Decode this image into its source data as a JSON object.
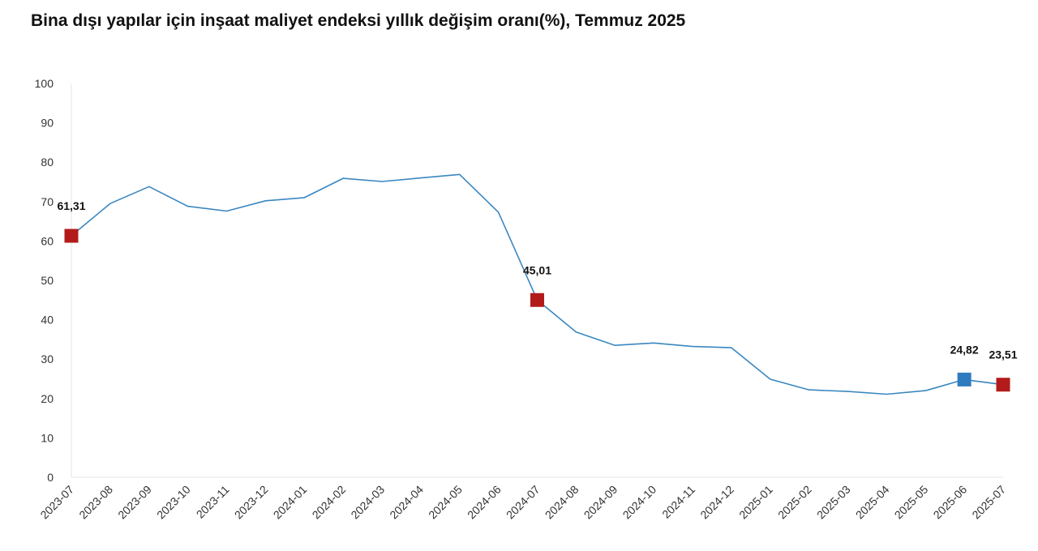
{
  "chart_data": {
    "type": "line",
    "title": "Bina dışı yapılar için inşaat maliyet endeksi yıllık değişim oranı(%), Temmuz 2025",
    "xlabel": "",
    "ylabel": "",
    "ylim": [
      0,
      100
    ],
    "yticks": [
      0,
      10,
      20,
      30,
      40,
      50,
      60,
      70,
      80,
      90,
      100
    ],
    "grid": false,
    "legend": "none",
    "categories": [
      "2023-07",
      "2023-08",
      "2023-09",
      "2023-10",
      "2023-11",
      "2023-12",
      "2024-01",
      "2024-02",
      "2024-03",
      "2024-04",
      "2024-05",
      "2024-06",
      "2024-07",
      "2024-08",
      "2024-09",
      "2024-10",
      "2024-11",
      "2024-12",
      "2025-01",
      "2025-02",
      "2025-03",
      "2025-04",
      "2025-05",
      "2025-06",
      "2025-07"
    ],
    "series": [
      {
        "values": [
          61.31,
          69.5,
          73.8,
          68.8,
          67.6,
          70.2,
          71.0,
          75.9,
          75.1,
          76.0,
          76.9,
          67.3,
          45.01,
          36.9,
          33.5,
          34.1,
          33.2,
          32.9,
          24.9,
          22.2,
          21.8,
          21.1,
          22.0,
          24.82,
          23.51
        ],
        "color": "#3a87c0"
      }
    ],
    "highlights": [
      {
        "category": "2023-07",
        "value": 61.31,
        "label": "61,31",
        "color": "#b31b1b"
      },
      {
        "category": "2024-07",
        "value": 45.01,
        "label": "45,01",
        "color": "#b31b1b"
      },
      {
        "category": "2025-06",
        "value": 24.82,
        "label": "24,82",
        "color": "#2f7bbf"
      },
      {
        "category": "2025-07",
        "value": 23.51,
        "label": "23,51",
        "color": "#b31b1b"
      }
    ],
    "axis_color": "#e6e6e6"
  }
}
